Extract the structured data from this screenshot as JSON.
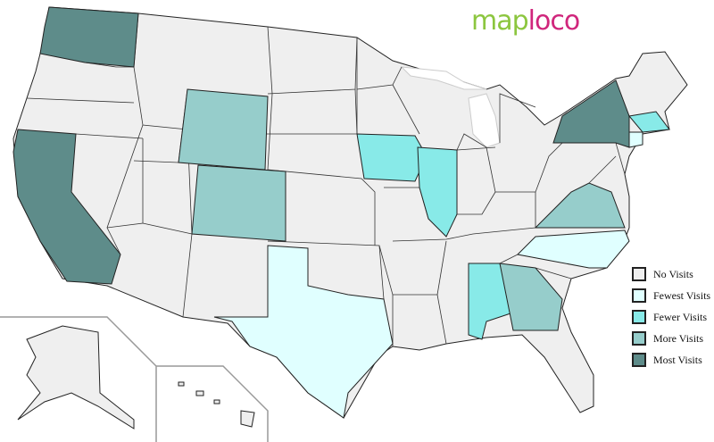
{
  "logo": {
    "part1": "map",
    "part2": "loco"
  },
  "legend": [
    {
      "label": "No Visits",
      "color": "#efefef"
    },
    {
      "label": "Fewest Visits",
      "color": "#e0ffff"
    },
    {
      "label": "Fewer Visits",
      "color": "#88eae8"
    },
    {
      "label": "More Visits",
      "color": "#96cdcb"
    },
    {
      "label": "Most Visits",
      "color": "#5e8c8a"
    }
  ],
  "states": {
    "Washington": "Most Visits",
    "California": "Most Visits",
    "New York": "Most Visits",
    "Wyoming": "More Visits",
    "Colorado": "More Visits",
    "Virginia": "More Visits",
    "Georgia": "More Visits",
    "Iowa": "Fewer Visits",
    "Illinois": "Fewer Visits",
    "Alabama": "Fewer Visits",
    "Massachusetts": "Fewer Visits",
    "Texas": "Fewest Visits",
    "North Carolina": "Fewest Visits",
    "Connecticut": "Fewest Visits"
  }
}
